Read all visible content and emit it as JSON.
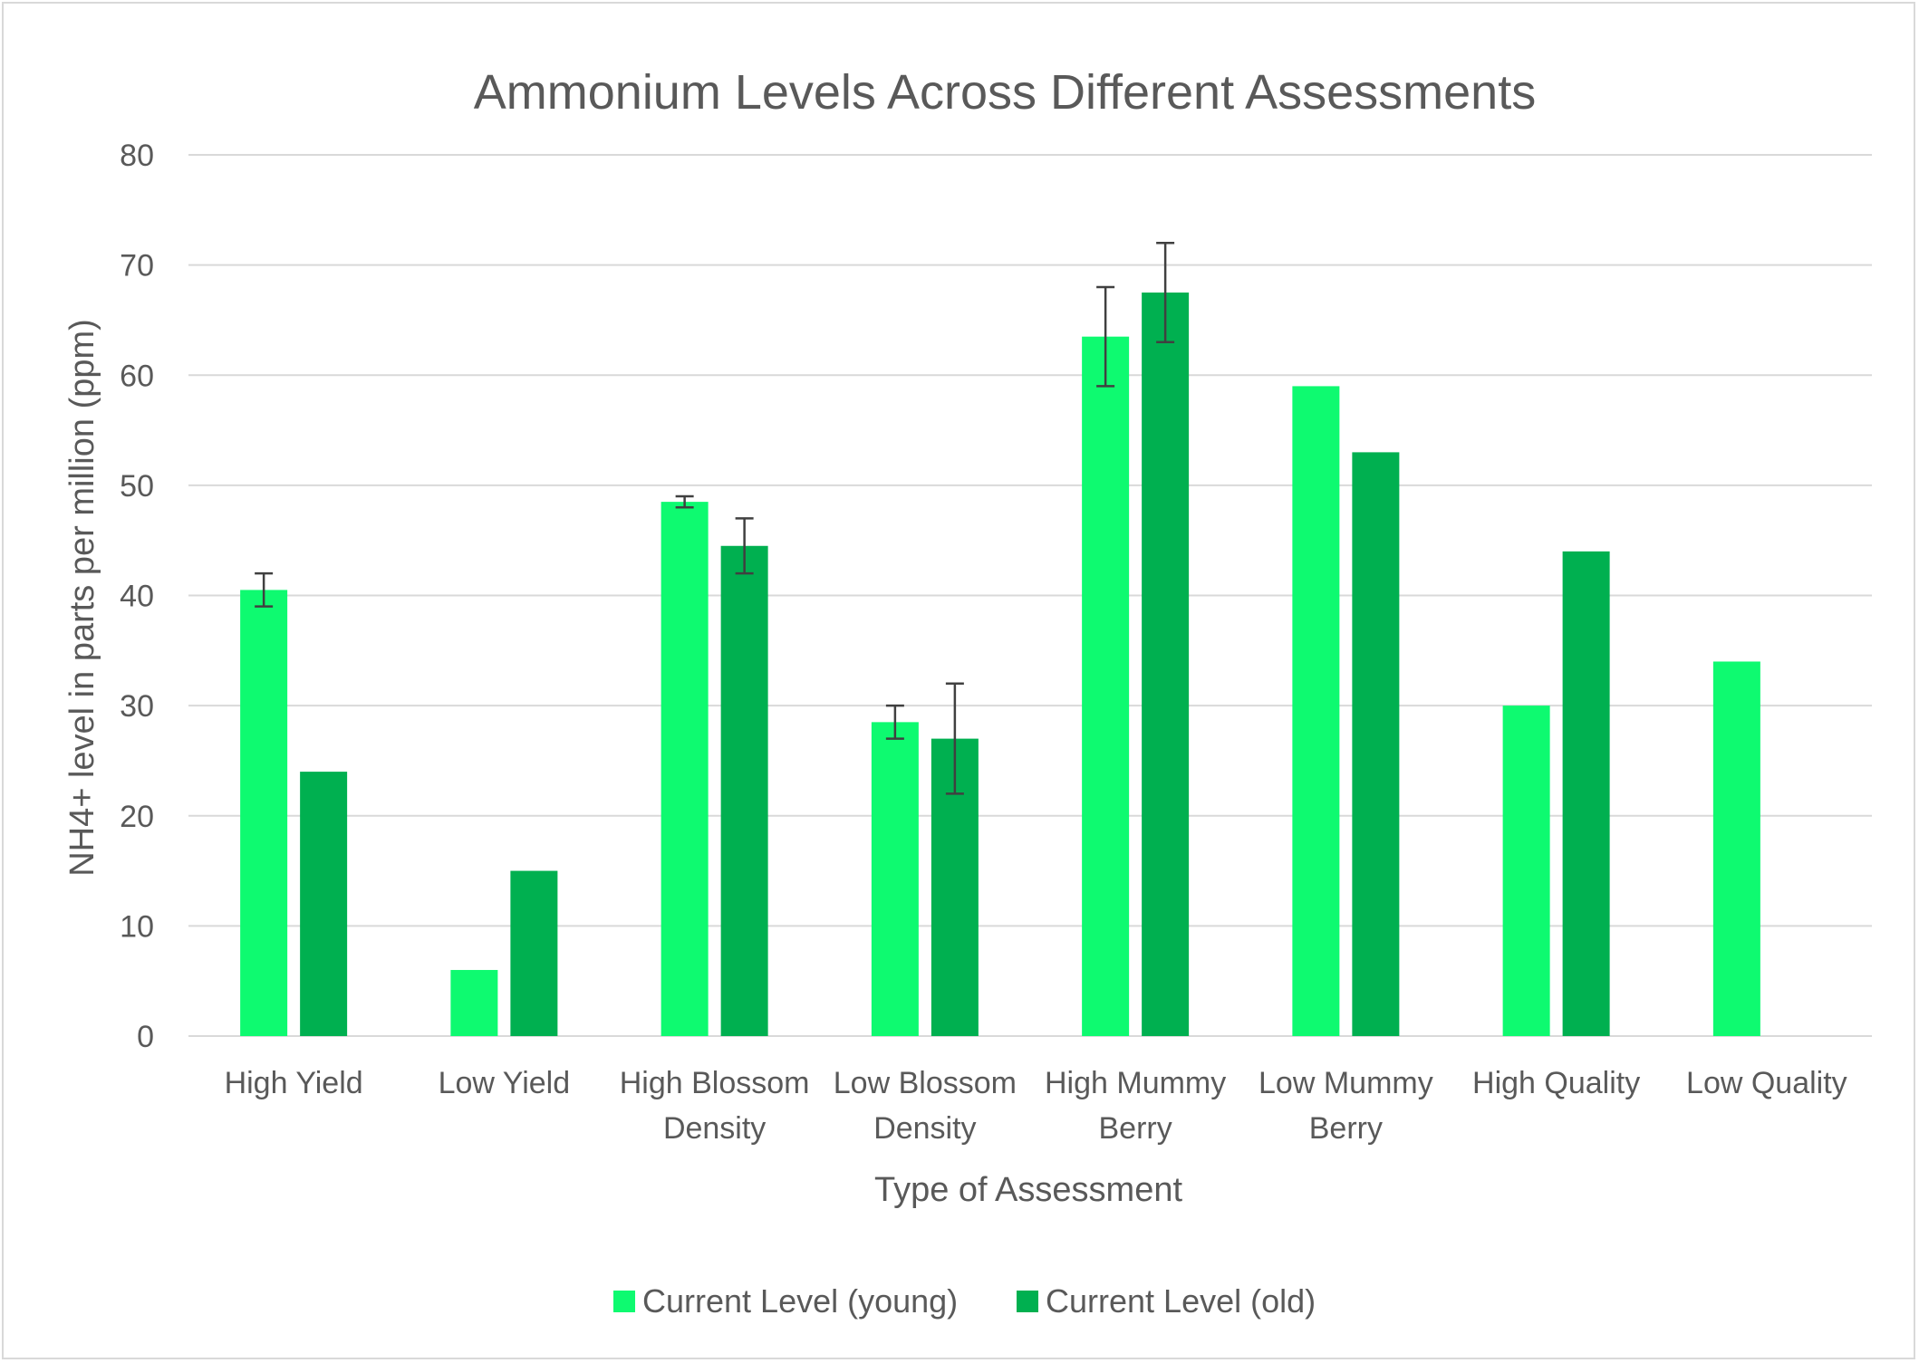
{
  "chart_data": {
    "type": "bar",
    "title": "Ammonium Levels Across Different Assessments",
    "xlabel": "Type of Assessment",
    "ylabel": "NH4+ level in parts per million (ppm)",
    "ylim": [
      0,
      80
    ],
    "yticks": [
      0,
      10,
      20,
      30,
      40,
      50,
      60,
      70,
      80
    ],
    "grid": true,
    "legend_position": "bottom",
    "categories": [
      [
        "High Yield"
      ],
      [
        "Low Yield"
      ],
      [
        "High Blossom",
        "Density"
      ],
      [
        "Low Blossom",
        "Density"
      ],
      [
        "High Mummy",
        "Berry"
      ],
      [
        "Low Mummy",
        "Berry"
      ],
      [
        "High Quality"
      ],
      [
        "Low Quality"
      ]
    ],
    "series": [
      {
        "name": "Current Level (young)",
        "color": "#0EFA70",
        "values": [
          40.5,
          6,
          48.5,
          28.5,
          63.5,
          59,
          30,
          34
        ],
        "error": [
          1.5,
          null,
          0.5,
          1.5,
          4.5,
          null,
          null,
          null
        ]
      },
      {
        "name": "Current Level (old)",
        "color": "#00B050",
        "values": [
          24,
          15,
          44.5,
          27,
          67.5,
          53,
          44,
          null
        ],
        "error": [
          null,
          null,
          2.5,
          5,
          4.5,
          null,
          null,
          null
        ]
      }
    ]
  }
}
